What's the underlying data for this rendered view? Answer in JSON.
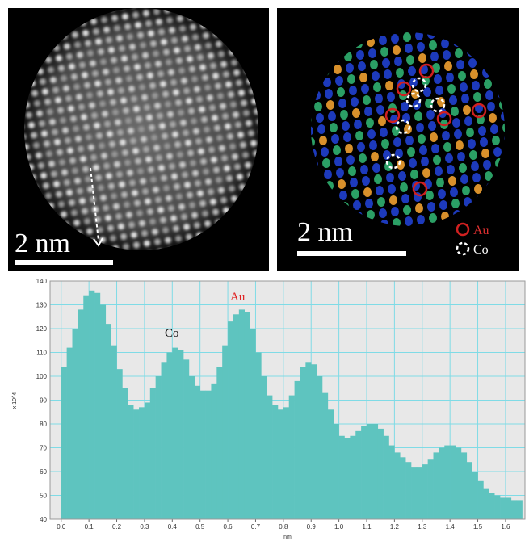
{
  "images": [
    {
      "scale_bar": "2 nm"
    },
    {
      "scale_bar": "2 nm",
      "legend": [
        "Au",
        "Co"
      ]
    }
  ],
  "chart_data": {
    "type": "histogram",
    "xlabel": "nm",
    "ylabel": "x 10^4",
    "annotations": [
      "Co",
      "Au"
    ],
    "color": "#5ec4bf",
    "grid": true,
    "bins": [
      0,
      0.02,
      0.04,
      0.06,
      0.08,
      0.1,
      0.12,
      0.14,
      0.16,
      0.18,
      0.2,
      0.22,
      0.24,
      0.26,
      0.28,
      0.3,
      0.32,
      0.34,
      0.36,
      0.38,
      0.4,
      0.42,
      0.44,
      0.46,
      0.48,
      0.5,
      0.52,
      0.54,
      0.56,
      0.58,
      0.6,
      0.62,
      0.64,
      0.66,
      0.68,
      0.7,
      0.72,
      0.74,
      0.76,
      0.78,
      0.8,
      0.82,
      0.84,
      0.86,
      0.88,
      0.9,
      0.92,
      0.94,
      0.96,
      0.98,
      1,
      1.02,
      1.04,
      1.06,
      1.08,
      1.1,
      1.12,
      1.14,
      1.16,
      1.18,
      1.2,
      1.22,
      1.24,
      1.26,
      1.28,
      1.3,
      1.32,
      1.34,
      1.36,
      1.38,
      1.4,
      1.42,
      1.44,
      1.46,
      1.48,
      1.5,
      1.52,
      1.54,
      1.56,
      1.58,
      1.6,
      1.62,
      1.64,
      1.66
    ],
    "values": [
      104,
      112,
      120,
      128,
      134,
      136,
      135,
      130,
      122,
      113,
      103,
      95,
      88,
      86,
      87,
      89,
      95,
      100,
      106,
      110,
      112,
      111,
      107,
      100,
      96,
      94,
      94,
      97,
      104,
      113,
      123,
      126,
      128,
      127,
      120,
      110,
      100,
      92,
      88,
      86,
      87,
      92,
      98,
      104,
      106,
      105,
      100,
      93,
      86,
      80,
      75,
      74,
      75,
      77,
      79,
      80,
      80,
      78,
      75,
      71,
      68,
      66,
      64,
      62,
      62,
      63,
      65,
      68,
      70,
      71,
      71,
      70,
      68,
      64,
      60,
      56,
      53,
      51,
      50,
      49,
      49,
      48,
      48
    ],
    "xlim": [
      -0.04,
      1.67
    ],
    "ylim": [
      40,
      140
    ],
    "xticks": [
      {
        "value": 0,
        "label": "0.0"
      },
      0.1,
      0.2,
      0.3,
      0.4,
      0.5,
      0.6,
      0.7,
      0.8,
      0.9,
      {
        "value": 1,
        "label": "1.0"
      },
      1.1,
      1.2,
      1.3,
      1.4,
      1.5,
      1.6
    ],
    "yticks": [
      40,
      50,
      60,
      70,
      80,
      90,
      100,
      110,
      120,
      130,
      140
    ]
  }
}
